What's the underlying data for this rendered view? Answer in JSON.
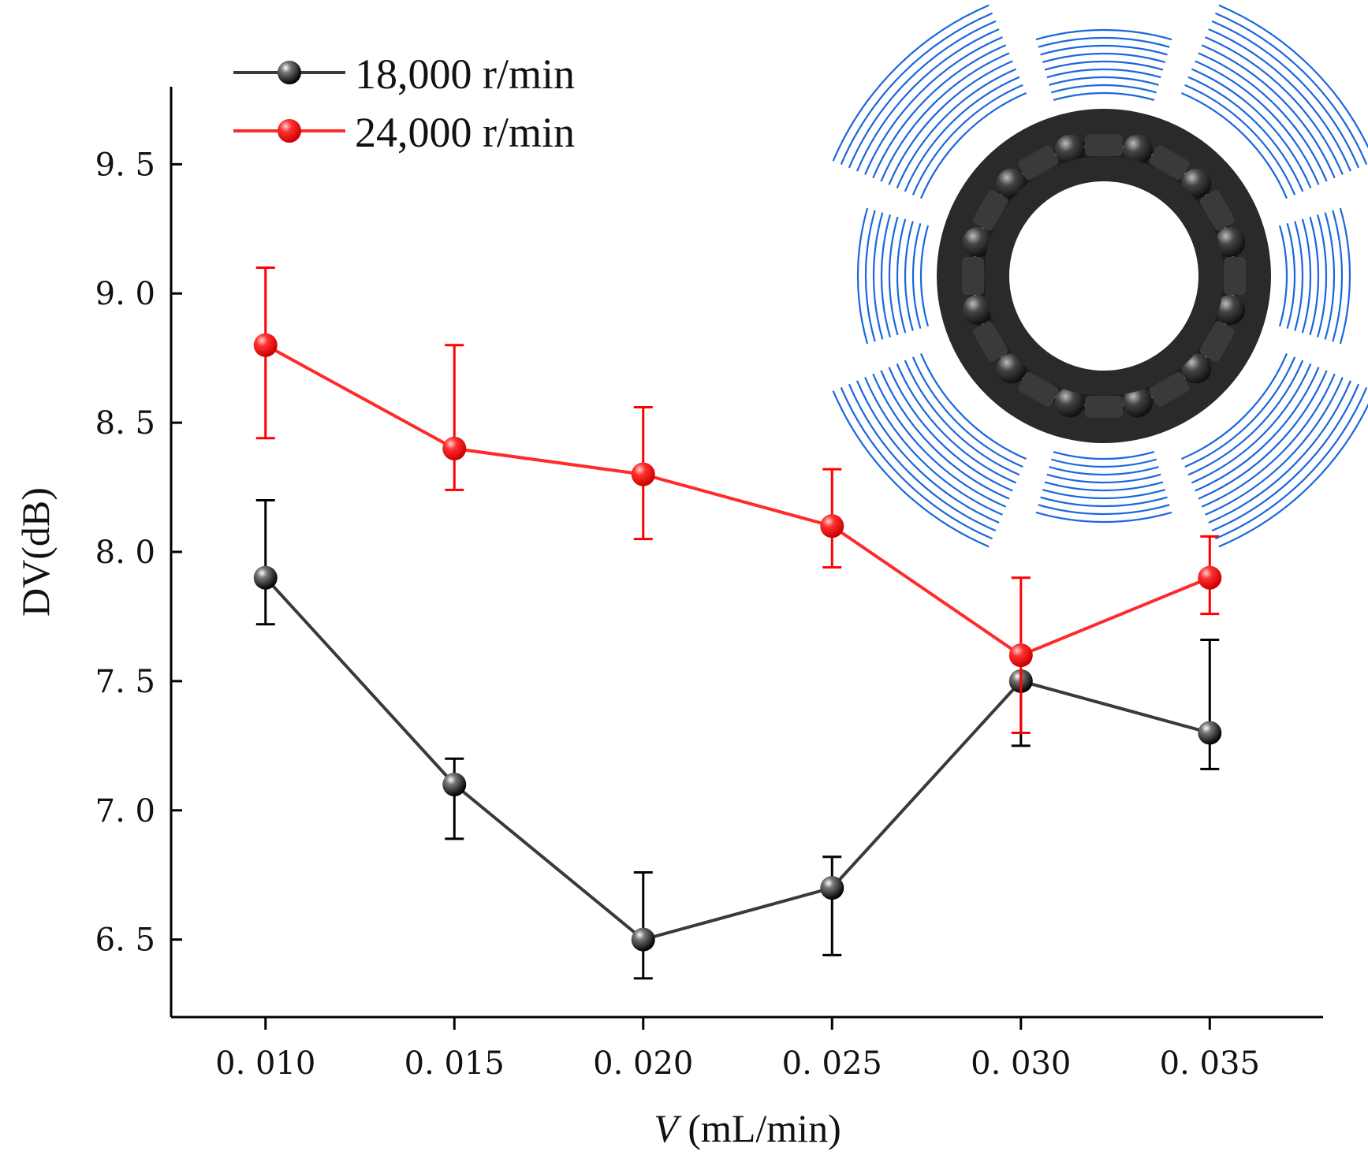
{
  "chart_data": {
    "type": "line",
    "x": [
      0.01,
      0.015,
      0.02,
      0.025,
      0.03,
      0.035
    ],
    "x_tick_labels": [
      "0. 010",
      "0. 015",
      "0. 020",
      "0. 025",
      "0. 030",
      "0. 035"
    ],
    "y_ticks": [
      6.5,
      7.0,
      7.5,
      8.0,
      8.5,
      9.0,
      9.5
    ],
    "y_tick_labels": [
      "6. 5",
      "7. 0",
      "7. 5",
      "8. 0",
      "8. 5",
      "9. 0",
      "9. 5"
    ],
    "xlim": [
      0.0075,
      0.038
    ],
    "ylim": [
      6.2,
      9.8
    ],
    "xlabel_symbol": "V",
    "xlabel_unit": " (mL/min)",
    "ylabel": "DV(dB)",
    "legend_position": "top-left",
    "grid": false,
    "series": [
      {
        "name": "18,000 r/min",
        "color": "#3a3a3a",
        "marker_color": "#000000",
        "values": [
          7.9,
          7.1,
          6.5,
          6.7,
          7.5,
          7.3
        ],
        "err_upper": [
          8.2,
          7.2,
          6.76,
          6.82,
          7.5,
          7.66
        ],
        "err_lower": [
          7.72,
          6.89,
          6.35,
          6.44,
          7.25,
          7.16
        ]
      },
      {
        "name": "24,000 r/min",
        "color": "#ff2a2a",
        "marker_color": "#ff0000",
        "values": [
          8.8,
          8.4,
          8.3,
          8.1,
          7.6,
          7.9
        ],
        "err_upper": [
          9.1,
          8.8,
          8.56,
          8.32,
          7.9,
          8.06
        ],
        "err_lower": [
          8.44,
          8.24,
          8.05,
          7.94,
          7.3,
          7.76
        ]
      }
    ]
  },
  "inset": {
    "icon": "bearing-with-sound-waves-icon",
    "bearing_color": "#2a2a2a",
    "wave_color": "#1a66dd"
  }
}
